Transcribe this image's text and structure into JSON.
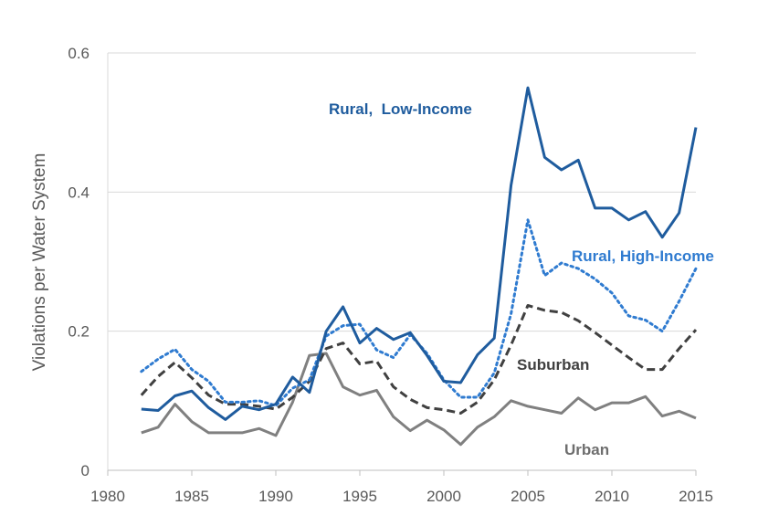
{
  "chart_data": {
    "type": "line",
    "ylabel": "Violations per Water System",
    "xlim": [
      1980,
      2015
    ],
    "ylim": [
      0,
      0.6
    ],
    "x_ticks": [
      "1980",
      "1985",
      "1990",
      "1995",
      "2000",
      "2005",
      "2010",
      "2015"
    ],
    "y_ticks": [
      "0",
      "0.2",
      "0.4",
      "0.6"
    ],
    "grid": "horizontal",
    "legend": "labels placed directly beside each line",
    "x": [
      1982,
      1983,
      1984,
      1985,
      1986,
      1987,
      1988,
      1989,
      1990,
      1991,
      1992,
      1993,
      1994,
      1995,
      1996,
      1997,
      1998,
      1999,
      2000,
      2001,
      2002,
      2003,
      2004,
      2005,
      2006,
      2007,
      2008,
      2009,
      2010,
      2011,
      2012,
      2013,
      2014,
      2015
    ],
    "series": [
      {
        "name": "Rural,  Low-Income",
        "color": "#1f5c9e",
        "style": "solid",
        "values": [
          0.088,
          0.086,
          0.107,
          0.114,
          0.09,
          0.073,
          0.092,
          0.087,
          0.095,
          0.134,
          0.112,
          0.2,
          0.235,
          0.183,
          0.204,
          0.188,
          0.198,
          0.165,
          0.128,
          0.126,
          0.166,
          0.19,
          0.41,
          0.55,
          0.45,
          0.432,
          0.446,
          0.377,
          0.377,
          0.36,
          0.372,
          0.335,
          0.37,
          0.493
        ]
      },
      {
        "name": "Rural, High-Income",
        "color": "#2f7bd0",
        "style": "dotted",
        "values": [
          0.142,
          0.16,
          0.174,
          0.145,
          0.128,
          0.098,
          0.098,
          0.1,
          0.093,
          0.118,
          0.13,
          0.193,
          0.208,
          0.21,
          0.173,
          0.162,
          0.195,
          0.168,
          0.13,
          0.105,
          0.105,
          0.14,
          0.225,
          0.36,
          0.28,
          0.298,
          0.29,
          0.275,
          0.255,
          0.222,
          0.216,
          0.2,
          0.243,
          0.29
        ]
      },
      {
        "name": "Suburban",
        "color": "#404040",
        "style": "dashed",
        "values": [
          0.108,
          0.135,
          0.155,
          0.133,
          0.108,
          0.095,
          0.095,
          0.092,
          0.088,
          0.105,
          0.128,
          0.175,
          0.183,
          0.153,
          0.157,
          0.12,
          0.102,
          0.09,
          0.087,
          0.082,
          0.098,
          0.13,
          0.18,
          0.237,
          0.23,
          0.227,
          0.215,
          0.198,
          0.18,
          0.162,
          0.145,
          0.145,
          0.175,
          0.202
        ]
      },
      {
        "name": "Urban",
        "color": "#808080",
        "style": "solid",
        "values": [
          0.054,
          0.062,
          0.095,
          0.07,
          0.054,
          0.054,
          0.054,
          0.06,
          0.05,
          0.098,
          0.165,
          0.168,
          0.12,
          0.108,
          0.115,
          0.077,
          0.057,
          0.072,
          0.058,
          0.037,
          0.062,
          0.077,
          0.1,
          0.092,
          0.087,
          0.082,
          0.104,
          0.087,
          0.097,
          0.097,
          0.106,
          0.078,
          0.085,
          0.075
        ]
      }
    ]
  }
}
